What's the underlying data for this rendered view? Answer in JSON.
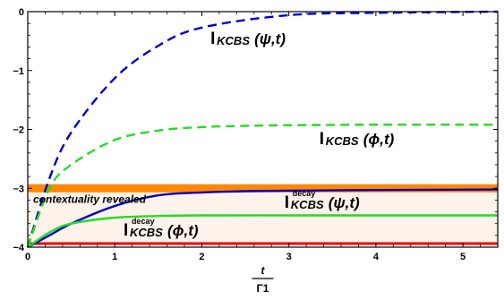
{
  "chart_data": {
    "type": "line",
    "xlim": [
      0,
      5.4
    ],
    "ylim": [
      -4,
      0
    ],
    "x_ticks": [
      "0",
      "1",
      "2",
      "3",
      "4",
      "5"
    ],
    "y_ticks": [
      "0",
      "−1",
      "−2",
      "−3",
      "−4"
    ],
    "xlabel": {
      "numerator": "t",
      "denominator": "Γ1"
    },
    "ylabel": "",
    "grid": false,
    "series": [
      {
        "name": "I KCBS(ψ,t)",
        "style": "dashed",
        "color": "#0000cc",
        "x": [
          0,
          0.25,
          0.5,
          1.0,
          1.5,
          2.0,
          3.0,
          4.0,
          5.0,
          5.4
        ],
        "y": [
          -4.0,
          -2.83,
          -2.05,
          -1.13,
          -0.58,
          -0.27,
          -0.06,
          -0.02,
          -0.005,
          0.0
        ]
      },
      {
        "name": "I KCBS(ϕ,t)",
        "style": "dashed",
        "color": "#22dd22",
        "x": [
          0,
          0.25,
          0.5,
          1.0,
          1.5,
          2.0,
          2.5,
          3.0,
          4.0,
          5.4
        ],
        "y": [
          -4.0,
          -3.0,
          -2.6,
          -2.18,
          -2.02,
          -1.96,
          -1.94,
          -1.93,
          -1.92,
          -1.92
        ]
      },
      {
        "name": "I KCBS decay(ψ,t)",
        "style": "solid",
        "color": "#0000cc",
        "x": [
          0,
          0.25,
          0.5,
          1.0,
          1.5,
          2.0,
          2.5,
          3.0,
          4.0,
          5.4
        ],
        "y": [
          -4.0,
          -3.8,
          -3.6,
          -3.3,
          -3.12,
          -3.07,
          -3.05,
          -3.04,
          -3.03,
          -3.02
        ]
      },
      {
        "name": "I KCBS decay(ϕ,t)",
        "style": "solid",
        "color": "#22dd22",
        "x": [
          0,
          0.25,
          0.5,
          1.0,
          1.5,
          2.0,
          3.0,
          4.0,
          5.4
        ],
        "y": [
          -4.0,
          -3.75,
          -3.6,
          -3.5,
          -3.47,
          -3.46,
          -3.46,
          -3.46,
          -3.46
        ]
      }
    ],
    "reference_lines": [
      {
        "y": -3.0,
        "color": "#ff8800"
      },
      {
        "y": -3.94,
        "color": "#ee0000"
      }
    ],
    "shaded_band": {
      "y_from": -3.94,
      "y_to": -3.0,
      "color": "#fdf3ea"
    },
    "annotations": [
      {
        "text_main": "I",
        "sub": "KCBS",
        "sup": "",
        "args": "(ψ,t)",
        "x": 2.1,
        "y": -0.55
      },
      {
        "text_main": "I",
        "sub": "KCBS",
        "sup": "",
        "args": "(ϕ,t)",
        "x": 3.35,
        "y": -2.25
      },
      {
        "text_main": "I",
        "sub": "KCBS",
        "sup": "decay",
        "args": "(ψ,t)",
        "x": 2.95,
        "y": -3.33
      },
      {
        "text_main": "I",
        "sub": "KCBS",
        "sup": "decay",
        "args": "(ϕ,t)",
        "x": 1.1,
        "y": -3.8
      }
    ],
    "band_label": "contextuality revealed"
  }
}
